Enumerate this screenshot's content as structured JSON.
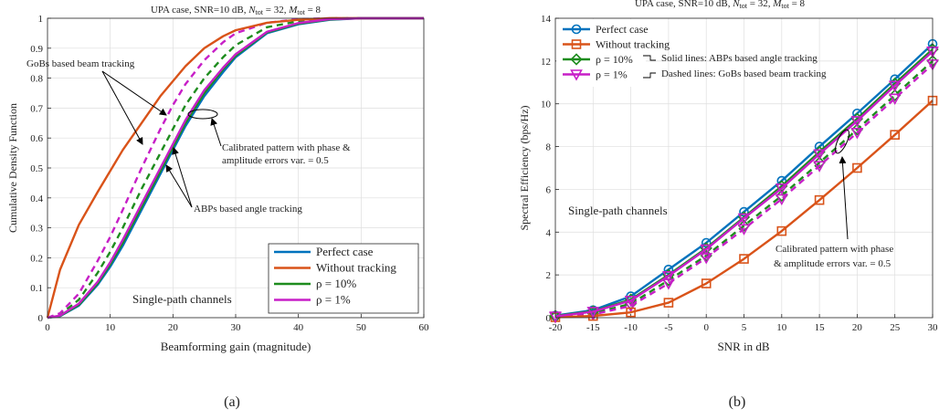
{
  "chart_data": [
    {
      "type": "line",
      "title": "UPA case, SNR=10 dB, N_tot = 32, M_tot = 8",
      "xlabel": "Beamforming gain (magnitude)",
      "ylabel": "Cumulative Density Function",
      "xlim": [
        0,
        60
      ],
      "ylim": [
        0,
        1
      ],
      "xticks": [
        "0",
        "10",
        "20",
        "30",
        "40",
        "50",
        "60"
      ],
      "yticks": [
        "0",
        "0.1",
        "0.2",
        "0.3",
        "0.4",
        "0.5",
        "0.6",
        "0.7",
        "0.8",
        "0.9",
        "1"
      ],
      "grid": true,
      "legend_position": "bottom-right",
      "legend": [
        "Perfect case",
        "Without tracking",
        "ρ = 10%",
        "ρ = 1%"
      ],
      "panel_label": "(a)",
      "annotations": {
        "gobs": "GoBs based beam tracking",
        "abps": "ABPs based angle tracking",
        "calib_line1": "Calibrated pattern with phase &",
        "calib_line2": "amplitude errors var. = 0.5",
        "channel": "Single-path channels"
      },
      "series": [
        {
          "name": "Perfect case",
          "color": "#0072BD",
          "dash": "solid",
          "x": [
            0,
            2,
            5,
            8,
            10,
            12,
            15,
            18,
            20,
            22,
            25,
            28,
            30,
            35,
            40,
            45,
            50,
            55,
            60
          ],
          "y": [
            0,
            0.005,
            0.04,
            0.11,
            0.17,
            0.24,
            0.36,
            0.48,
            0.56,
            0.64,
            0.74,
            0.82,
            0.87,
            0.95,
            0.98,
            0.995,
            1.0,
            1.0,
            1.0
          ]
        },
        {
          "name": "Without tracking",
          "color": "#D95319",
          "dash": "solid",
          "x": [
            0,
            1,
            2,
            5,
            8,
            10,
            12,
            15,
            18,
            20,
            22,
            25,
            28,
            30,
            35,
            40,
            45,
            50,
            55,
            60
          ],
          "y": [
            0,
            0.08,
            0.16,
            0.31,
            0.42,
            0.49,
            0.56,
            0.65,
            0.74,
            0.79,
            0.84,
            0.9,
            0.94,
            0.96,
            0.985,
            0.995,
            1.0,
            1.0,
            1.0,
            1.0
          ]
        },
        {
          "name": "ρ = 10%",
          "color": "#1E8C1E",
          "dash": "solid",
          "x": [
            0,
            2,
            5,
            8,
            10,
            12,
            15,
            18,
            20,
            22,
            25,
            28,
            30,
            35,
            40,
            45,
            50,
            55,
            60
          ],
          "y": [
            0,
            0.006,
            0.043,
            0.115,
            0.178,
            0.25,
            0.37,
            0.49,
            0.57,
            0.65,
            0.75,
            0.83,
            0.875,
            0.953,
            0.982,
            0.996,
            1.0,
            1.0,
            1.0
          ]
        },
        {
          "name": "ρ = 1%",
          "color": "#C71FC7",
          "dash": "solid",
          "x": [
            0,
            2,
            5,
            8,
            10,
            12,
            15,
            18,
            20,
            22,
            25,
            28,
            30,
            35,
            40,
            45,
            50,
            55,
            60
          ],
          "y": [
            0,
            0.007,
            0.047,
            0.12,
            0.185,
            0.26,
            0.38,
            0.5,
            0.58,
            0.66,
            0.76,
            0.835,
            0.88,
            0.955,
            0.984,
            0.997,
            1.0,
            1.0,
            1.0
          ]
        },
        {
          "name": "ρ = 10%",
          "color": "#1E8C1E",
          "dash": "dashed",
          "x": [
            0,
            2,
            5,
            8,
            10,
            12,
            15,
            18,
            20,
            22,
            25,
            28,
            30,
            35,
            40,
            45,
            50
          ],
          "y": [
            0,
            0.01,
            0.06,
            0.15,
            0.22,
            0.3,
            0.43,
            0.55,
            0.63,
            0.71,
            0.8,
            0.87,
            0.91,
            0.97,
            0.99,
            1.0,
            1.0
          ]
        },
        {
          "name": "ρ = 1%",
          "color": "#C71FC7",
          "dash": "dashed",
          "x": [
            0,
            2,
            5,
            8,
            10,
            12,
            15,
            18,
            20,
            22,
            25,
            28,
            30,
            35,
            40,
            45,
            50
          ],
          "y": [
            0,
            0.015,
            0.08,
            0.19,
            0.27,
            0.36,
            0.5,
            0.63,
            0.71,
            0.78,
            0.86,
            0.92,
            0.95,
            0.985,
            0.997,
            1.0,
            1.0
          ]
        }
      ]
    },
    {
      "type": "line",
      "title": "UPA case, SNR=10 dB, N_tot = 32, M_tot = 8",
      "xlabel": "SNR in dB",
      "ylabel": "Spectral Efficiency (bps/Hz)",
      "xlim": [
        -20,
        30
      ],
      "ylim": [
        0,
        14
      ],
      "xticks": [
        "-20",
        "-15",
        "-10",
        "-5",
        "0",
        "5",
        "10",
        "15",
        "20",
        "25",
        "30"
      ],
      "yticks": [
        "0",
        "2",
        "4",
        "6",
        "8",
        "10",
        "12",
        "14"
      ],
      "grid": true,
      "legend_position": "top-left",
      "legend": [
        "Perfect case",
        "Without tracking",
        "ρ = 10%",
        "ρ = 1%"
      ],
      "panel_label": "(b)",
      "annotations": {
        "solid_lines": "Solid lines:  ABPs based angle tracking",
        "dashed_lines": "Dashed lines:  GoBs based beam tracking",
        "calib_line1": "Calibrated pattern with phase",
        "calib_line2": "& amplitude errors var. = 0.5",
        "channel": "Single-path channels"
      },
      "series": [
        {
          "name": "Perfect case",
          "color": "#0072BD",
          "dash": "solid",
          "marker": "circle",
          "x": [
            -20,
            -15,
            -10,
            -5,
            0,
            5,
            10,
            15,
            20,
            25,
            30
          ],
          "y": [
            0.1,
            0.35,
            1.0,
            2.25,
            3.5,
            4.95,
            6.4,
            8.0,
            9.55,
            11.15,
            12.8
          ]
        },
        {
          "name": "Without tracking",
          "color": "#D95319",
          "dash": "solid",
          "marker": "square",
          "x": [
            -20,
            -15,
            -10,
            -5,
            0,
            5,
            10,
            15,
            20,
            25,
            30
          ],
          "y": [
            0.02,
            0.08,
            0.25,
            0.7,
            1.6,
            2.75,
            4.05,
            5.5,
            7.0,
            8.55,
            10.15
          ]
        },
        {
          "name": "ρ = 10%",
          "color": "#1E8C1E",
          "dash": "solid",
          "marker": "diamond",
          "x": [
            -20,
            -15,
            -10,
            -5,
            0,
            5,
            10,
            15,
            20,
            25,
            30
          ],
          "y": [
            0.08,
            0.3,
            0.85,
            2.0,
            3.25,
            4.7,
            6.15,
            7.75,
            9.3,
            10.95,
            12.55
          ]
        },
        {
          "name": "ρ = 1%",
          "color": "#C71FC7",
          "dash": "solid",
          "marker": "triangle-down",
          "x": [
            -20,
            -15,
            -10,
            -5,
            0,
            5,
            10,
            15,
            20,
            25,
            30
          ],
          "y": [
            0.06,
            0.28,
            0.8,
            1.95,
            3.2,
            4.65,
            6.05,
            7.65,
            9.2,
            10.85,
            12.45
          ]
        },
        {
          "name": "ρ = 10%",
          "color": "#1E8C1E",
          "dash": "dashed",
          "marker": "diamond",
          "x": [
            -20,
            -15,
            -10,
            -5,
            0,
            5,
            10,
            15,
            20,
            25,
            30
          ],
          "y": [
            0.05,
            0.2,
            0.65,
            1.75,
            2.9,
            4.3,
            5.7,
            7.25,
            8.8,
            10.4,
            12.0
          ]
        },
        {
          "name": "ρ = 1%",
          "color": "#C71FC7",
          "dash": "dashed",
          "marker": "triangle-down",
          "x": [
            -20,
            -15,
            -10,
            -5,
            0,
            5,
            10,
            15,
            20,
            25,
            30
          ],
          "y": [
            0.03,
            0.15,
            0.55,
            1.6,
            2.8,
            4.15,
            5.55,
            7.1,
            8.65,
            10.25,
            11.85
          ]
        }
      ]
    }
  ]
}
